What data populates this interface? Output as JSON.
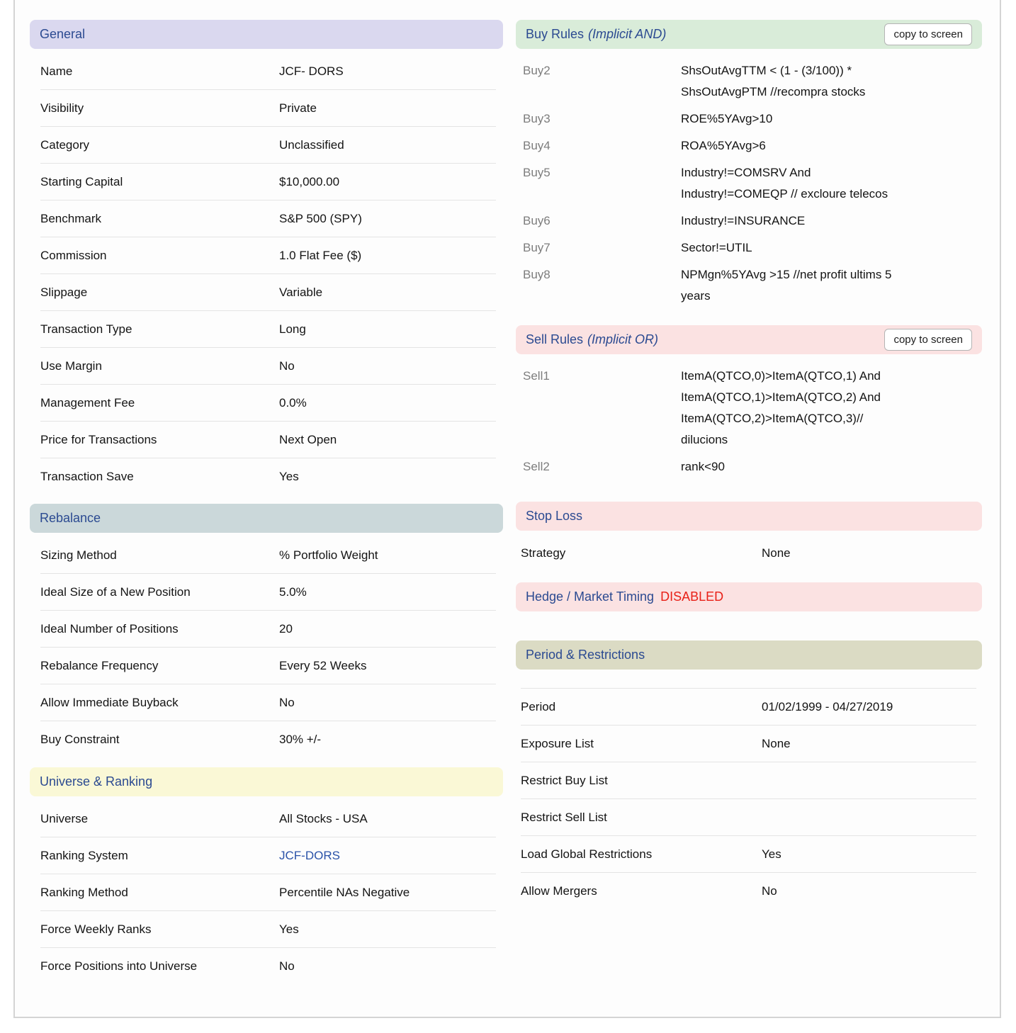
{
  "colors": {
    "header_text": "#2b4a91",
    "general_header_bg": "#dad8ef",
    "rebalance_header_bg": "#cbd8da",
    "universe_header_bg": "#faf8d6",
    "buy_rules_header_bg": "#d9ecd9",
    "sell_rules_header_bg": "#fbe2e2",
    "stop_loss_header_bg": "#fbe2e2",
    "hedge_header_bg": "#fbe2e2",
    "period_header_bg": "#dbdbc4",
    "disabled_text": "#e82017",
    "link_text": "#2a52a8",
    "rule_name_text": "#7d7d7d"
  },
  "left": {
    "general": {
      "title": "General",
      "rows": [
        {
          "label": "Name",
          "value": "JCF- DORS"
        },
        {
          "label": "Visibility",
          "value": "Private"
        },
        {
          "label": "Category",
          "value": "Unclassified"
        },
        {
          "label": "Starting Capital",
          "value": "$10,000.00"
        },
        {
          "label": "Benchmark",
          "value": "S&P 500 (SPY)"
        },
        {
          "label": "Commission",
          "value": "1.0 Flat Fee ($)"
        },
        {
          "label": "Slippage",
          "value": "Variable"
        },
        {
          "label": "Transaction Type",
          "value": "Long"
        },
        {
          "label": "Use Margin",
          "value": "No"
        },
        {
          "label": "Management Fee",
          "value": "0.0%"
        },
        {
          "label": "Price for Transactions",
          "value": "Next Open"
        },
        {
          "label": "Transaction Save",
          "value": "Yes"
        }
      ]
    },
    "rebalance": {
      "title": "Rebalance",
      "rows": [
        {
          "label": "Sizing Method",
          "value": "% Portfolio Weight"
        },
        {
          "label": "Ideal Size of a New Position",
          "value": "5.0%"
        },
        {
          "label": "Ideal Number of Positions",
          "value": "20"
        },
        {
          "label": "Rebalance Frequency",
          "value": "Every 52 Weeks"
        },
        {
          "label": "Allow Immediate Buyback",
          "value": "No"
        },
        {
          "label": "Buy Constraint",
          "value": "30% +/-"
        }
      ]
    },
    "universe": {
      "title": "Universe & Ranking",
      "rows": [
        {
          "label": "Universe",
          "value": "All Stocks - USA"
        },
        {
          "label": "Ranking System",
          "value": "JCF-DORS"
        },
        {
          "label": "Ranking Method",
          "value": "Percentile NAs Negative"
        },
        {
          "label": "Force Weekly Ranks",
          "value": "Yes"
        },
        {
          "label": "Force Positions into Universe",
          "value": "No"
        }
      ]
    }
  },
  "right": {
    "buy_rules": {
      "title": "Buy Rules",
      "subtitle": "(Implicit AND)",
      "copy_button": "copy to screen",
      "rules": [
        {
          "name": "Buy2",
          "value": "ShsOutAvgTTM < (1 - (3/100)) *\nShsOutAvgPTM //recompra stocks"
        },
        {
          "name": "Buy3",
          "value": "ROE%5YAvg>10"
        },
        {
          "name": "Buy4",
          "value": "ROA%5YAvg>6"
        },
        {
          "name": "Buy5",
          "value": "Industry!=COMSRV And\nIndustry!=COMEQP // excloure telecos"
        },
        {
          "name": "Buy6",
          "value": "Industry!=INSURANCE"
        },
        {
          "name": "Buy7",
          "value": "Sector!=UTIL"
        },
        {
          "name": "Buy8",
          "value": "NPMgn%5YAvg >15 //net profit ultims 5\nyears"
        }
      ]
    },
    "sell_rules": {
      "title": "Sell Rules",
      "subtitle": "(Implicit OR)",
      "copy_button": "copy to screen",
      "rules": [
        {
          "name": "Sell1",
          "value": "ItemA(QTCO,0)>ItemA(QTCO,1) And\nItemA(QTCO,1)>ItemA(QTCO,2) And\nItemA(QTCO,2)>ItemA(QTCO,3)//\ndilucions"
        },
        {
          "name": "Sell2",
          "value": "rank<90"
        }
      ]
    },
    "stop_loss": {
      "title": "Stop Loss",
      "rows": [
        {
          "label": "Strategy",
          "value": "None"
        }
      ]
    },
    "hedge": {
      "title": "Hedge / Market Timing",
      "status": "DISABLED"
    },
    "period": {
      "title": "Period & Restrictions",
      "rows": [
        {
          "label": "Period",
          "value": "01/02/1999 - 04/27/2019"
        },
        {
          "label": "Exposure List",
          "value": "None"
        },
        {
          "label": "Restrict Buy List",
          "value": ""
        },
        {
          "label": "Restrict Sell List",
          "value": ""
        },
        {
          "label": "Load Global Restrictions",
          "value": "Yes"
        },
        {
          "label": "Allow Mergers",
          "value": "No"
        }
      ]
    }
  }
}
